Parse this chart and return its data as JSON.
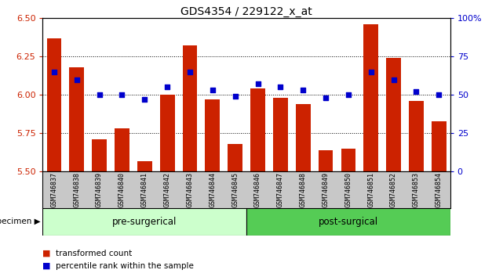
{
  "title": "GDS4354 / 229122_x_at",
  "samples": [
    "GSM746837",
    "GSM746838",
    "GSM746839",
    "GSM746840",
    "GSM746841",
    "GSM746842",
    "GSM746843",
    "GSM746844",
    "GSM746845",
    "GSM746846",
    "GSM746847",
    "GSM746848",
    "GSM746849",
    "GSM746850",
    "GSM746851",
    "GSM746852",
    "GSM746853",
    "GSM746854"
  ],
  "bar_values": [
    6.37,
    6.18,
    5.71,
    5.78,
    5.57,
    6.0,
    6.32,
    5.97,
    5.68,
    6.04,
    5.98,
    5.94,
    5.64,
    5.65,
    6.46,
    6.24,
    5.96,
    5.83
  ],
  "dot_values": [
    65,
    60,
    50,
    50,
    47,
    55,
    65,
    53,
    49,
    57,
    55,
    53,
    48,
    50,
    65,
    60,
    52,
    50
  ],
  "bar_color": "#cc2200",
  "dot_color": "#0000cc",
  "ylim_left": [
    5.5,
    6.5
  ],
  "ylim_right": [
    0,
    100
  ],
  "yticks_left": [
    5.5,
    5.75,
    6.0,
    6.25,
    6.5
  ],
  "yticks_right": [
    0,
    25,
    50,
    75,
    100
  ],
  "ytick_labels_right": [
    "0",
    "25",
    "50",
    "75",
    "100%"
  ],
  "pre_surgical_color": "#ccffcc",
  "post_surgical_color": "#55cc55",
  "pre_surgical_label": "pre-surgerical",
  "post_surgical_label": "post-surgical",
  "pre_surgical_count": 9,
  "post_surgical_count": 9,
  "specimen_label": "specimen",
  "legend_bar_label": "transformed count",
  "legend_dot_label": "percentile rank within the sample",
  "bar_width": 0.65,
  "tick_label_color_left": "#cc2200",
  "tick_label_color_right": "#0000cc",
  "grid_ticks": [
    5.75,
    6.0,
    6.25
  ]
}
